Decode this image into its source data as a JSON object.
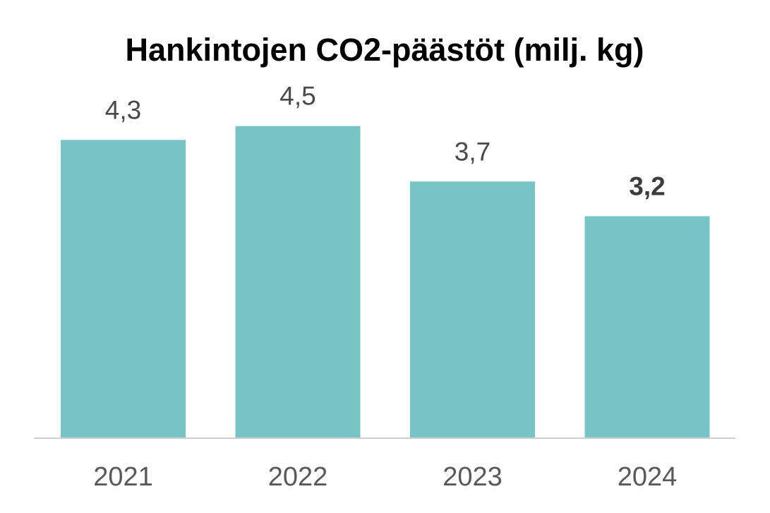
{
  "chart_data": {
    "type": "bar",
    "title": "Hankintojen CO2-päästöt (milj. kg)",
    "xlabel": "",
    "ylabel": "",
    "categories": [
      "2021",
      "2022",
      "2023",
      "2024"
    ],
    "values": [
      4.3,
      4.5,
      3.7,
      3.2
    ],
    "value_labels": [
      "4,3",
      "4,5",
      "3,7",
      "3,2"
    ],
    "emphasized_index": 3,
    "ylim": [
      0,
      5.3
    ],
    "grid": false,
    "legend": "none",
    "bar_color": "#76c4c4",
    "axis_color": "#d0d0d0"
  }
}
